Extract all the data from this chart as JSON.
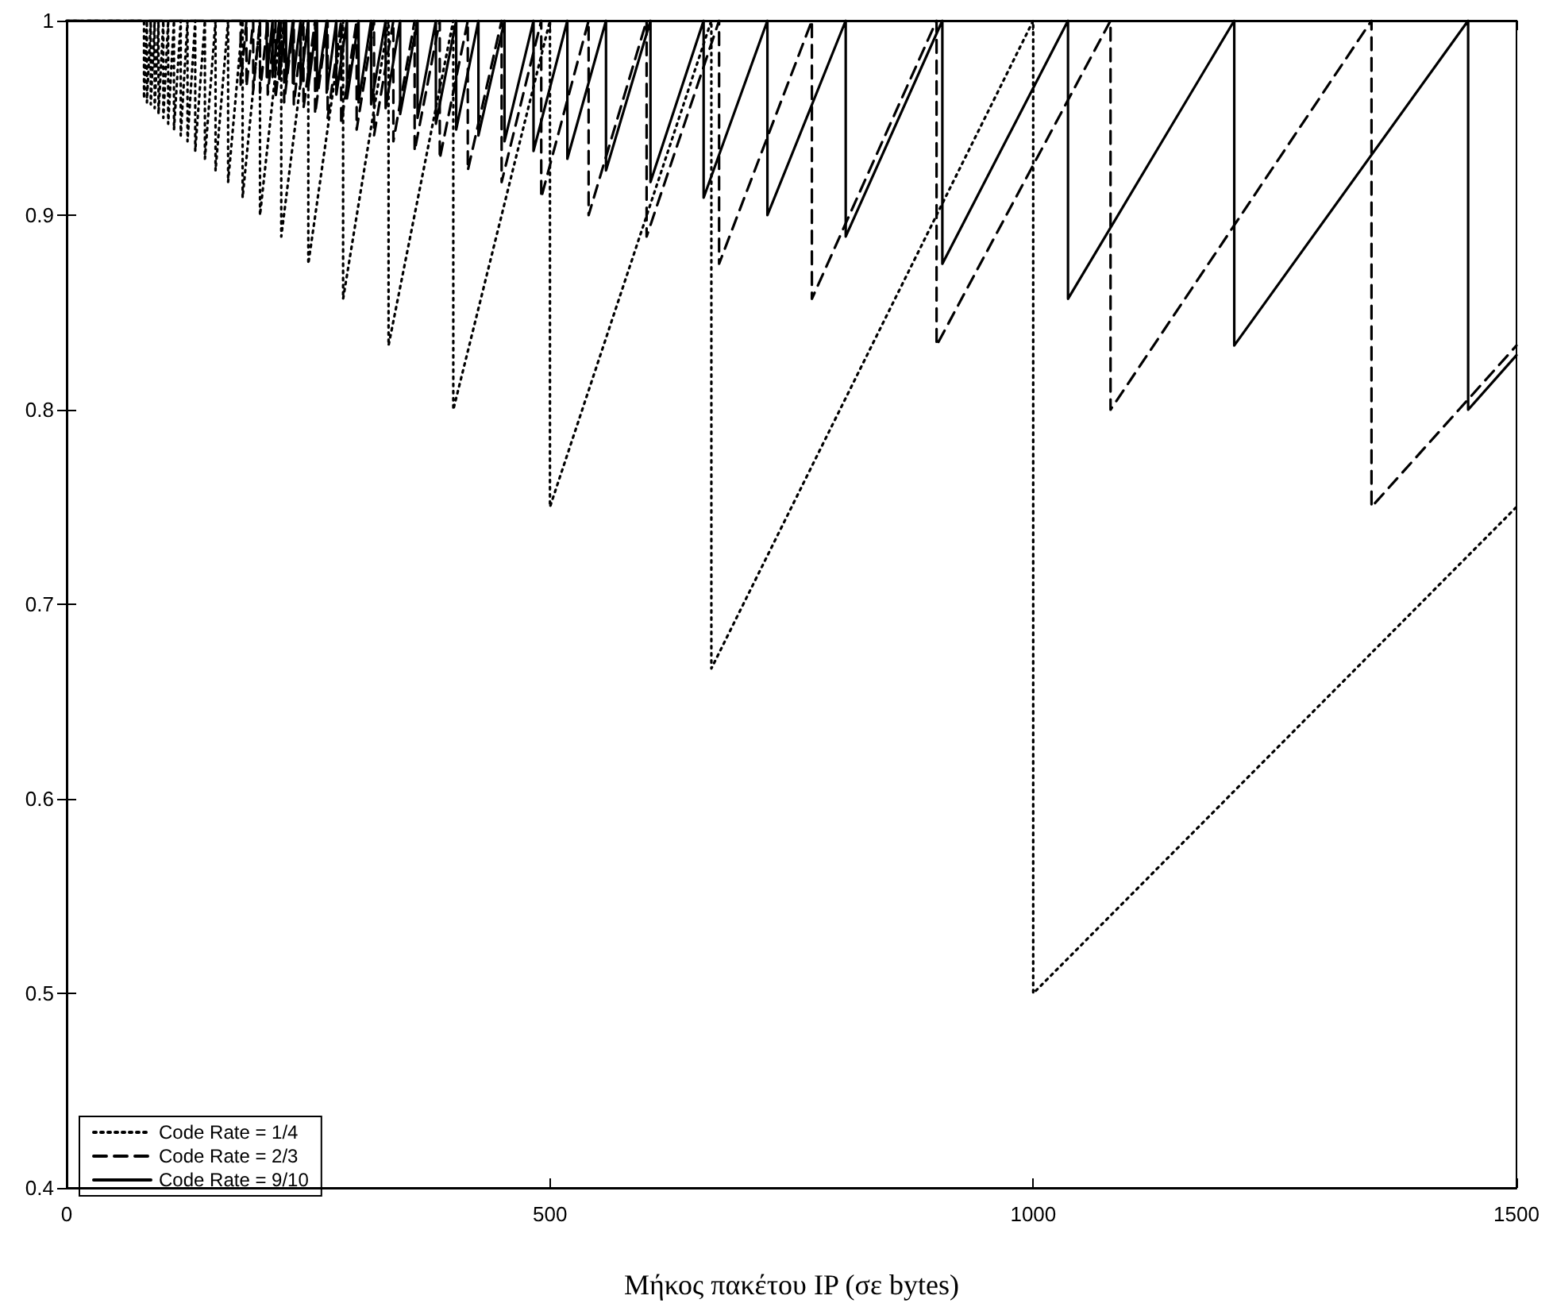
{
  "chart_data": {
    "type": "line",
    "xlabel": "Μήκος πακέτου IP (σε bytes)",
    "xlim": [
      0,
      1500
    ],
    "xticks": [
      0,
      500,
      1000,
      1500
    ],
    "ylim": [
      0.4,
      1
    ],
    "yticks": [
      0.4,
      0.5,
      0.6,
      0.7,
      0.8,
      0.9,
      1
    ],
    "grid": false,
    "legend": "bottom left",
    "marker": "none",
    "series": [
      {
        "name": "Code Rate = 1/4",
        "color": "#000000",
        "line_style": "dotted",
        "x": [
          0,
          80,
          80,
          83,
          83,
          87,
          87,
          91,
          91,
          95,
          95,
          100,
          100,
          105,
          105,
          111,
          111,
          118,
          118,
          125,
          125,
          133,
          133,
          143,
          143,
          154,
          154,
          167,
          167,
          182,
          182,
          200,
          200,
          222,
          222,
          250,
          250,
          286,
          286,
          333,
          333,
          400,
          400,
          500,
          500,
          667,
          667,
          1000,
          1000,
          1500
        ],
        "values": [
          1,
          1,
          0.96,
          1,
          0.958,
          1,
          0.957,
          1,
          0.955,
          1,
          0.952,
          1,
          0.95,
          1,
          0.947,
          1,
          0.944,
          1,
          0.941,
          1,
          0.938,
          1,
          0.933,
          1,
          0.929,
          1,
          0.923,
          1,
          0.917,
          1,
          0.909,
          1,
          0.9,
          1,
          0.889,
          1,
          0.875,
          1,
          0.857,
          1,
          0.833,
          1,
          0.8,
          1,
          0.75,
          1,
          0.667,
          1,
          0.5,
          0.75
        ]
      },
      {
        "name": "Code Rate = 2/3",
        "color": "#000000",
        "line_style": "dashed",
        "x": [
          0,
          180,
          180,
          186,
          186,
          193,
          193,
          200,
          200,
          208,
          208,
          216,
          216,
          225,
          225,
          235,
          235,
          245,
          245,
          257,
          257,
          270,
          270,
          284,
          284,
          300,
          300,
          318,
          318,
          338,
          338,
          360,
          360,
          386,
          386,
          415,
          415,
          450,
          450,
          491,
          491,
          540,
          540,
          600,
          600,
          675,
          675,
          771,
          771,
          900,
          900,
          1080,
          1080,
          1350,
          1350,
          1500
        ],
        "values": [
          1,
          1,
          0.967,
          1,
          0.966,
          1,
          0.964,
          1,
          0.963,
          1,
          0.962,
          1,
          0.96,
          1,
          0.958,
          1,
          0.957,
          1,
          0.955,
          1,
          0.952,
          1,
          0.95,
          1,
          0.947,
          1,
          0.944,
          1,
          0.941,
          1,
          0.938,
          1,
          0.933,
          1,
          0.929,
          1,
          0.923,
          1,
          0.917,
          1,
          0.909,
          1,
          0.9,
          1,
          0.889,
          1,
          0.875,
          1,
          0.857,
          1,
          0.833,
          1,
          0.8,
          1,
          0.75,
          0.833
        ]
      },
      {
        "name": "Code Rate = 9/10",
        "color": "#000000",
        "line_style": "solid",
        "x": [
          0,
          207,
          207,
          213,
          213,
          220,
          220,
          227,
          227,
          234,
          234,
          242,
          242,
          250,
          250,
          259,
          259,
          269,
          269,
          279,
          279,
          290,
          290,
          302,
          302,
          315,
          315,
          330,
          330,
          345,
          345,
          363,
          363,
          382,
          382,
          403,
          403,
          426,
          426,
          453,
          453,
          483,
          483,
          518,
          518,
          558,
          558,
          604,
          604,
          659,
          659,
          725,
          725,
          806,
          806,
          906,
          906,
          1036,
          1036,
          1208,
          1208,
          1450,
          1450,
          1500
        ],
        "values": [
          1,
          1,
          0.971,
          1,
          0.971,
          1,
          0.97,
          1,
          0.969,
          1,
          0.968,
          1,
          0.967,
          1,
          0.966,
          1,
          0.964,
          1,
          0.963,
          1,
          0.962,
          1,
          0.96,
          1,
          0.958,
          1,
          0.957,
          1,
          0.955,
          1,
          0.952,
          1,
          0.95,
          1,
          0.947,
          1,
          0.944,
          1,
          0.941,
          1,
          0.938,
          1,
          0.933,
          1,
          0.929,
          1,
          0.923,
          1,
          0.917,
          1,
          0.909,
          1,
          0.9,
          1,
          0.889,
          1,
          0.875,
          1,
          0.857,
          1,
          0.833,
          1,
          0.8,
          0.828
        ]
      }
    ]
  }
}
